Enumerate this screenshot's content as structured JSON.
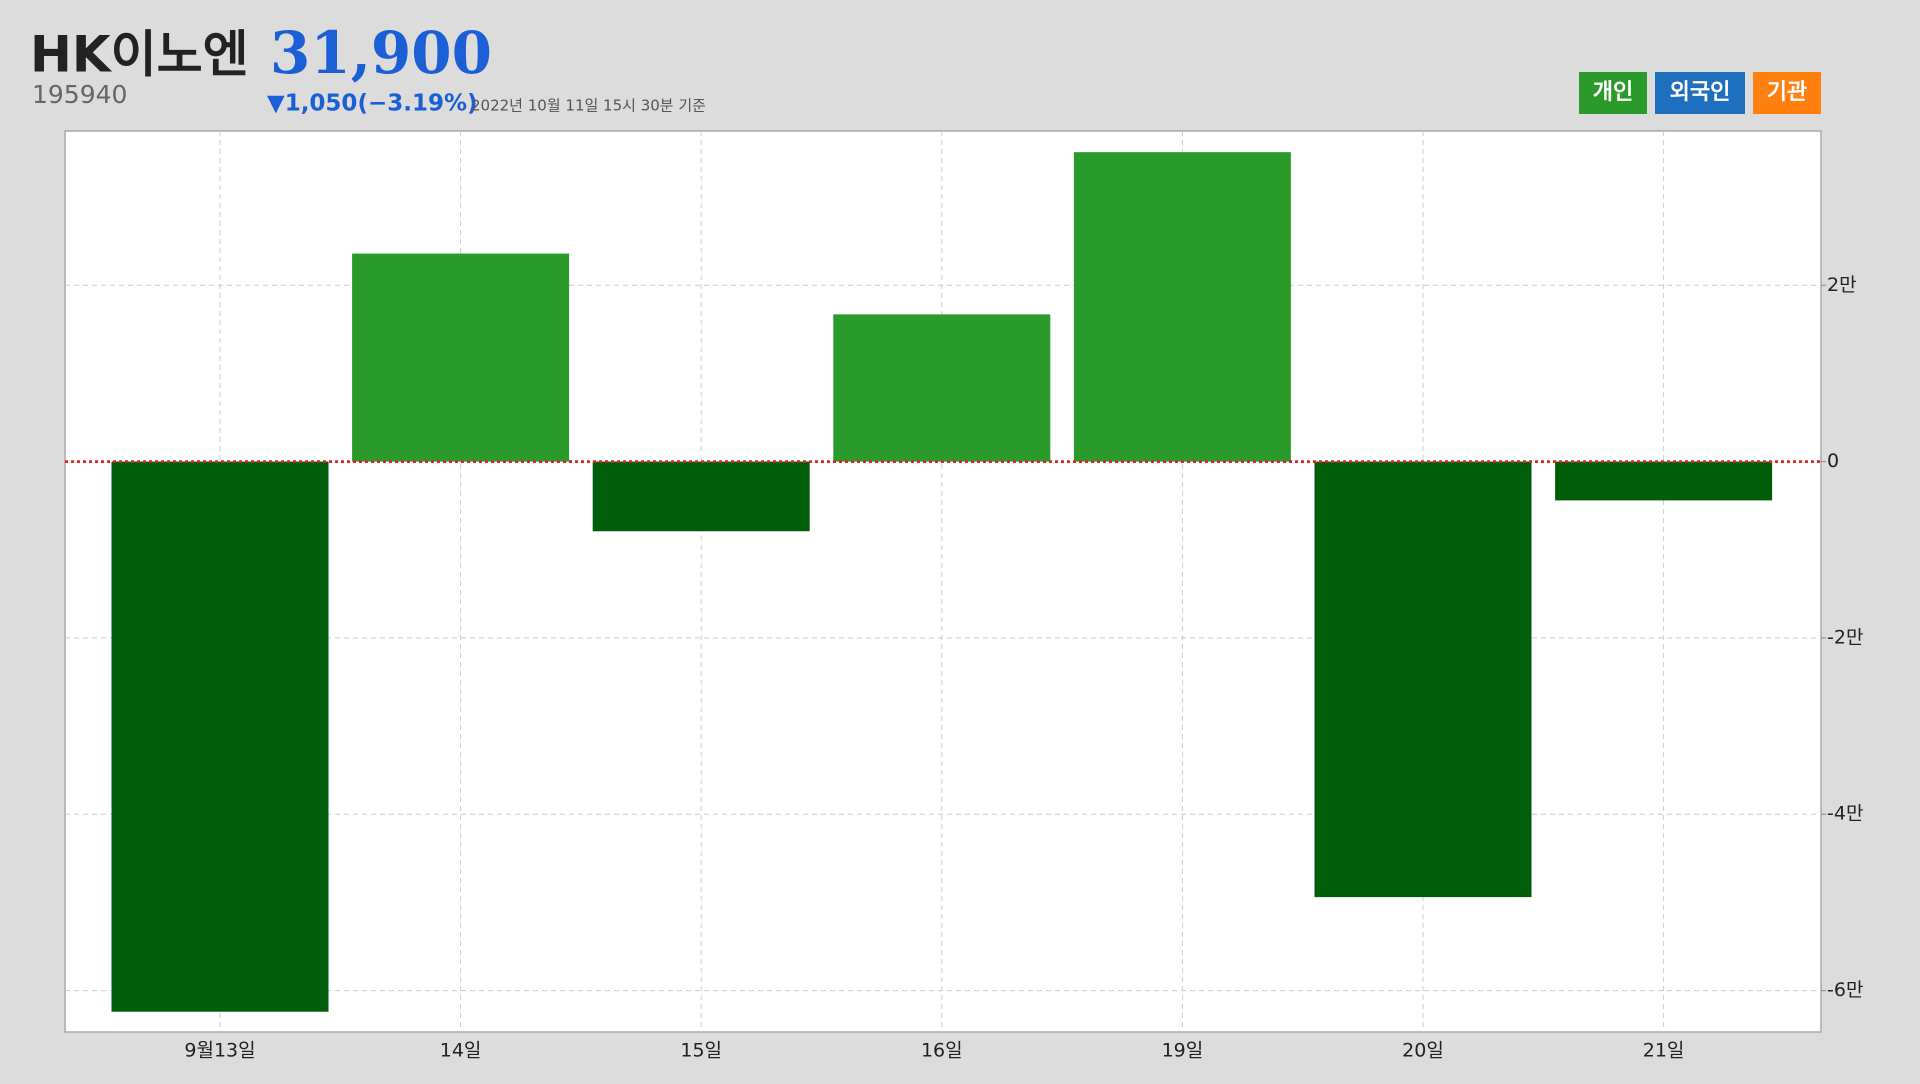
{
  "chart_data": {
    "type": "bar",
    "title": "HK이노엔",
    "code": "195940",
    "price": "31,900",
    "change": "▼1,050(−3.19%)",
    "timestamp": "2022년 10월 11일 15시 30분 기준",
    "categories": [
      "9월13일",
      "14일",
      "15일",
      "16일",
      "19일",
      "20일",
      "21일"
    ],
    "series": [
      {
        "name": "개인",
        "color": "#2a9a2a",
        "negative_color": "#005e0a",
        "values": [
          -62400,
          23600,
          -7900,
          16700,
          35100,
          -49400,
          -4400
        ]
      }
    ],
    "toggles": [
      {
        "name": "외국인",
        "color": "#1f6fbf"
      },
      {
        "name": "기관",
        "color": "#ff7f0f"
      }
    ],
    "ylim": [
      -64700,
      37500
    ],
    "yticks": [
      {
        "value": -60000,
        "label": "-6만"
      },
      {
        "value": -40000,
        "label": "-4만"
      },
      {
        "value": -20000,
        "label": "-2만"
      },
      0,
      {
        "value": 20000,
        "label": "2만"
      }
    ],
    "zero_line_color": "#e02020",
    "grid": true
  }
}
